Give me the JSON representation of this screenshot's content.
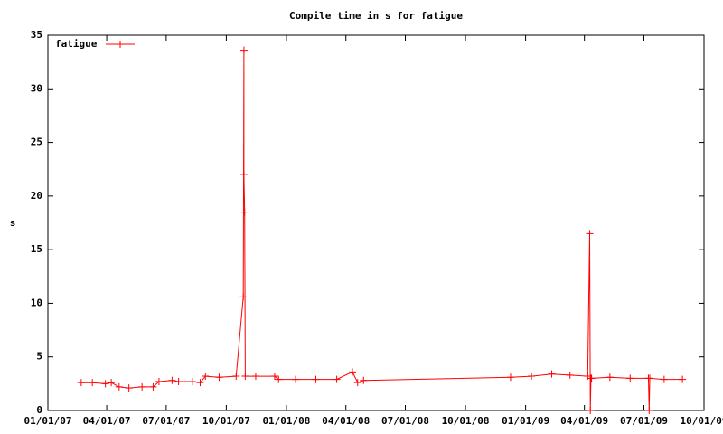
{
  "chart_data": {
    "type": "line",
    "title": "Compile time in s for fatigue",
    "y_label": "s",
    "legend": "top-left",
    "x": [
      "2007-02-21",
      "2007-03-10",
      "2007-03-30",
      "2007-04-08",
      "2007-04-20",
      "2007-05-05",
      "2007-05-25",
      "2007-06-11",
      "2007-06-20",
      "2007-07-10",
      "2007-07-20",
      "2007-08-10",
      "2007-08-22",
      "2007-08-30",
      "2007-09-20",
      "2007-10-16",
      "2007-10-27",
      "2007-10-28",
      "2007-10-28",
      "2007-10-29",
      "2007-10-30",
      "2007-11-15",
      "2007-12-14",
      "2007-12-20",
      "2008-01-15",
      "2008-02-15",
      "2008-03-18",
      "2008-04-11",
      "2008-04-19",
      "2008-04-28",
      "2008-12-09",
      "2009-01-10",
      "2009-02-10",
      "2009-03-10",
      "2009-04-06",
      "2009-04-09",
      "2009-04-10",
      "2009-04-11",
      "2009-04-12",
      "2009-05-10",
      "2009-06-10",
      "2009-07-08",
      "2009-07-09",
      "2009-07-10",
      "2009-08-01",
      "2009-08-29"
    ],
    "xlim": [
      "2007-01-01",
      "2009-10-01"
    ],
    "xticks": [
      {
        "value": "2007-01-01",
        "label": "01/01/07"
      },
      {
        "value": "2007-04-01",
        "label": "04/01/07"
      },
      {
        "value": "2007-07-01",
        "label": "07/01/07"
      },
      {
        "value": "2007-10-01",
        "label": "10/01/07"
      },
      {
        "value": "2008-01-01",
        "label": "01/01/08"
      },
      {
        "value": "2008-04-01",
        "label": "04/01/08"
      },
      {
        "value": "2008-07-01",
        "label": "07/01/08"
      },
      {
        "value": "2008-10-01",
        "label": "10/01/08"
      },
      {
        "value": "2009-01-01",
        "label": "01/01/09"
      },
      {
        "value": "2009-04-01",
        "label": "04/01/09"
      },
      {
        "value": "2009-07-01",
        "label": "07/01/09"
      },
      {
        "value": "2009-10-01",
        "label": "10/01/09"
      }
    ],
    "ylim": [
      0,
      35
    ],
    "yticks": [
      0,
      5,
      10,
      15,
      20,
      25,
      30,
      35
    ],
    "series": [
      {
        "name": "fatigue",
        "color": "#ff0000",
        "values": [
          2.6,
          2.6,
          2.5,
          2.6,
          2.2,
          2.1,
          2.2,
          2.2,
          2.7,
          2.8,
          2.7,
          2.7,
          2.6,
          3.2,
          3.1,
          3.2,
          10.6,
          33.6,
          22,
          18.5,
          3.2,
          3.2,
          3.2,
          2.9,
          2.9,
          2.9,
          2.9,
          3.6,
          2.6,
          2.8,
          3.1,
          3.2,
          3.4,
          3.3,
          3.2,
          16.5,
          0,
          3.0,
          3.0,
          3.1,
          3.0,
          3.0,
          0,
          3.0,
          2.9,
          2.9
        ]
      }
    ]
  }
}
